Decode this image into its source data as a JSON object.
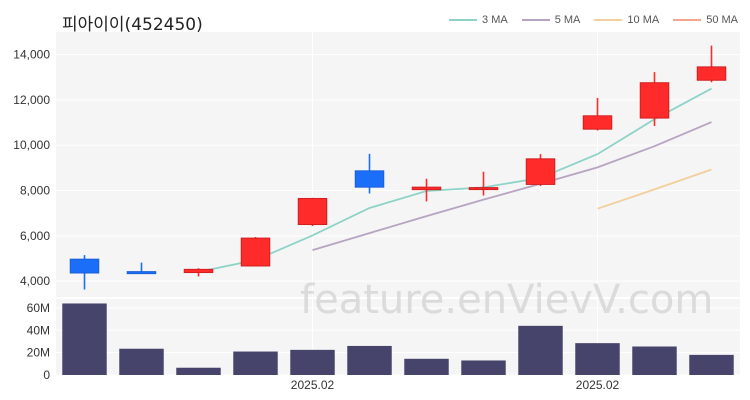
{
  "chart_data": {
    "type": "candlestick",
    "title": "피아이이(452450)",
    "watermark": "feature.enVievV.com",
    "legend": [
      {
        "name": "3 MA",
        "color": "#8ed3c7"
      },
      {
        "name": "5 MA",
        "color": "#b8a4c2"
      },
      {
        "name": "10 MA",
        "color": "#f2cf9c"
      },
      {
        "name": "50 MA",
        "color": "#f5a58f"
      }
    ],
    "colors": {
      "up": "#ff2b2b",
      "up_edge": "#d21f1f",
      "down": "#1a6ef7",
      "down_edge": "#1a5fd6",
      "volume": "#46446a"
    },
    "price_axis": {
      "ylim": [
        3300,
        15000
      ],
      "ticks": [
        4000,
        6000,
        8000,
        10000,
        12000,
        14000
      ],
      "tick_labels": [
        "4,000",
        "6,000",
        "8,000",
        "10,000",
        "12,000",
        "14,000"
      ]
    },
    "volume_axis": {
      "ylim": [
        0,
        68000000
      ],
      "ticks": [
        0,
        20000000,
        40000000,
        60000000
      ],
      "tick_labels": [
        "0",
        "20M",
        "40M",
        "60M"
      ]
    },
    "x_labels": [
      {
        "index": 4,
        "label": "2025.02"
      },
      {
        "index": 9,
        "label": "2025.02"
      }
    ],
    "candles": [
      {
        "open": 4970,
        "high": 5150,
        "low": 3630,
        "close": 4360,
        "volume": 64000000
      },
      {
        "open": 4420,
        "high": 4820,
        "low": 4320,
        "close": 4360,
        "volume": 23500000
      },
      {
        "open": 4380,
        "high": 4570,
        "low": 4210,
        "close": 4520,
        "volume": 6500000
      },
      {
        "open": 4670,
        "high": 5950,
        "low": 4670,
        "close": 5900,
        "volume": 21000000
      },
      {
        "open": 6500,
        "high": 7680,
        "low": 6430,
        "close": 7650,
        "volume": 22500000
      },
      {
        "open": 8870,
        "high": 9620,
        "low": 7870,
        "close": 8150,
        "volume": 26000000
      },
      {
        "open": 8040,
        "high": 8520,
        "low": 7520,
        "close": 8150,
        "volume": 14500000
      },
      {
        "open": 8120,
        "high": 8830,
        "low": 7780,
        "close": 8130,
        "volume": 13000000
      },
      {
        "open": 8270,
        "high": 9610,
        "low": 8200,
        "close": 9400,
        "volume": 44000000
      },
      {
        "open": 10710,
        "high": 12090,
        "low": 10650,
        "close": 11300,
        "volume": 28500000
      },
      {
        "open": 11200,
        "high": 13230,
        "low": 10850,
        "close": 12760,
        "volume": 25500000
      },
      {
        "open": 12870,
        "high": 14400,
        "low": 12780,
        "close": 13460,
        "volume": 18000000
      }
    ],
    "ma": [
      {
        "name": "3 MA",
        "values": [
          null,
          null,
          4410,
          4930,
          6020,
          7230,
          7980,
          8140,
          8560,
          9610,
          11150,
          12500
        ]
      },
      {
        "name": "5 MA",
        "values": [
          null,
          null,
          null,
          null,
          5370,
          6120,
          6870,
          7600,
          8300,
          9020,
          9960,
          11020
        ]
      },
      {
        "name": "10 MA",
        "values": [
          null,
          null,
          null,
          null,
          null,
          null,
          null,
          null,
          null,
          7200,
          8050,
          8930
        ]
      },
      {
        "name": "50 MA",
        "values": [
          null,
          null,
          null,
          null,
          null,
          null,
          null,
          null,
          null,
          null,
          null,
          null
        ]
      }
    ]
  }
}
